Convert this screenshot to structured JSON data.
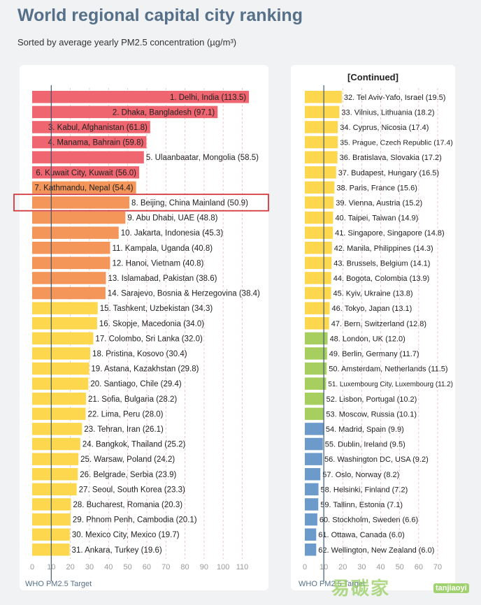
{
  "title": "World regional capital city ranking",
  "subtitle": "Sorted by average yearly PM2.5 concentration (µg/m³)",
  "continued_label": "[Continued]",
  "who_label": "WHO PM2.5 Target",
  "watermark": "易碳家",
  "watermark_site": "tanjiaoyi",
  "colors": {
    "red": "#ef6670",
    "orange": "#f4955a",
    "yellow": "#fdd84f",
    "green": "#a6cf5f",
    "blue": "#6b9acb",
    "who_line": "#3f5870",
    "grid": "#e9b9b9",
    "highlight_box": "#d2373c"
  },
  "chart_data": [
    {
      "type": "bar",
      "orientation": "horizontal",
      "reference_line": {
        "label": "WHO PM2.5 Target",
        "value": 10
      },
      "xlim": [
        0,
        115
      ],
      "ticks": [
        0,
        10,
        20,
        30,
        40,
        50,
        60,
        70,
        80,
        90,
        100,
        110
      ],
      "highlighted": "8. Beijing, China Mainland (50.9)",
      "bars": [
        {
          "label": "1. Delhi, India (113.5)",
          "value": 113.5,
          "color": "red"
        },
        {
          "label": "2. Dhaka, Bangladesh (97.1)",
          "value": 97.1,
          "color": "red"
        },
        {
          "label": "3. Kabul, Afghanistan (61.8)",
          "value": 61.8,
          "color": "red"
        },
        {
          "label": "4. Manama, Bahrain (59.8)",
          "value": 59.8,
          "color": "red"
        },
        {
          "label": "5. Ulaanbaatar, Mongolia (58.5)",
          "value": 58.5,
          "color": "red"
        },
        {
          "label": "6. Kuwait City, Kuwait (56.0)",
          "value": 56.0,
          "color": "red"
        },
        {
          "label": "7. Kathmandu, Nepal (54.4)",
          "value": 54.4,
          "color": "orange"
        },
        {
          "label": "8. Beijing, China Mainland (50.9)",
          "value": 50.9,
          "color": "orange"
        },
        {
          "label": "9. Abu Dhabi, UAE (48.8)",
          "value": 48.8,
          "color": "orange"
        },
        {
          "label": "10. Jakarta, Indonesia (45.3)",
          "value": 45.3,
          "color": "orange"
        },
        {
          "label": "11. Kampala, Uganda (40.8)",
          "value": 40.8,
          "color": "orange"
        },
        {
          "label": "12. Hanoi, Vietnam (40.8)",
          "value": 40.8,
          "color": "orange"
        },
        {
          "label": "13. Islamabad, Pakistan (38.6)",
          "value": 38.6,
          "color": "orange"
        },
        {
          "label": "14. Sarajevo, Bosnia & Herzegovina (38.4)",
          "value": 38.4,
          "color": "orange"
        },
        {
          "label": "15. Tashkent, Uzbekistan (34.3)",
          "value": 34.3,
          "color": "yellow"
        },
        {
          "label": "16. Skopje, Macedonia (34.0)",
          "value": 34.0,
          "color": "yellow"
        },
        {
          "label": "17. Colombo, Sri Lanka (32.0)",
          "value": 32.0,
          "color": "yellow"
        },
        {
          "label": "18. Pristina, Kosovo (30.4)",
          "value": 30.4,
          "color": "yellow"
        },
        {
          "label": "19. Astana, Kazakhstan (29.8)",
          "value": 29.8,
          "color": "yellow"
        },
        {
          "label": "20. Santiago, Chile (29.4)",
          "value": 29.4,
          "color": "yellow"
        },
        {
          "label": "21. Sofia, Bulgaria (28.2)",
          "value": 28.2,
          "color": "yellow"
        },
        {
          "label": "22. Lima, Peru (28.0)",
          "value": 28.0,
          "color": "yellow"
        },
        {
          "label": "23. Tehran, Iran (26.1)",
          "value": 26.1,
          "color": "yellow"
        },
        {
          "label": "24. Bangkok, Thailand (25.2)",
          "value": 25.2,
          "color": "yellow"
        },
        {
          "label": "25. Warsaw, Poland (24.2)",
          "value": 24.2,
          "color": "yellow"
        },
        {
          "label": "26. Belgrade, Serbia (23.9)",
          "value": 23.9,
          "color": "yellow"
        },
        {
          "label": "27. Seoul, South Korea (23.3)",
          "value": 23.3,
          "color": "yellow"
        },
        {
          "label": "28. Bucharest, Romania (20.3)",
          "value": 20.3,
          "color": "yellow"
        },
        {
          "label": "29. Phnom Penh, Cambodia (20.1)",
          "value": 20.1,
          "color": "yellow"
        },
        {
          "label": "30. Mexico City, Mexico (19.7)",
          "value": 19.7,
          "color": "yellow"
        },
        {
          "label": "31. Ankara, Turkey (19.6)",
          "value": 19.6,
          "color": "yellow"
        }
      ]
    },
    {
      "type": "bar",
      "orientation": "horizontal",
      "reference_line": {
        "label": "WHO PM2.5 Target",
        "value": 10
      },
      "xlim": [
        0,
        70
      ],
      "ticks": [
        0,
        10,
        20,
        30,
        40,
        50,
        60,
        70
      ],
      "bars": [
        {
          "label": "32. Tel Aviv-Yafo, Israel (19.5)",
          "value": 19.5,
          "color": "yellow"
        },
        {
          "label": "33. Vilnius, Lithuania (18.2)",
          "value": 18.2,
          "color": "yellow"
        },
        {
          "label": "34. Cyprus, Nicosia (17.4)",
          "value": 17.4,
          "color": "yellow"
        },
        {
          "label": "35. Prague, Czech Republic (17.4)",
          "value": 17.4,
          "color": "yellow"
        },
        {
          "label": "36. Bratislava, Slovakia (17.2)",
          "value": 17.2,
          "color": "yellow"
        },
        {
          "label": "37. Budapest, Hungary (16.5)",
          "value": 16.5,
          "color": "yellow"
        },
        {
          "label": "38. Paris, France (15.6)",
          "value": 15.6,
          "color": "yellow"
        },
        {
          "label": "39. Vienna, Austria (15.2)",
          "value": 15.2,
          "color": "yellow"
        },
        {
          "label": "40. Taipei, Taiwan (14.9)",
          "value": 14.9,
          "color": "yellow"
        },
        {
          "label": "41. Singapore, Singapore (14.8)",
          "value": 14.8,
          "color": "yellow"
        },
        {
          "label": "42. Manila, Philippines (14.3)",
          "value": 14.3,
          "color": "yellow"
        },
        {
          "label": "43. Brussels, Belgium (14.1)",
          "value": 14.1,
          "color": "yellow"
        },
        {
          "label": "44. Bogota, Colombia (13.9)",
          "value": 13.9,
          "color": "yellow"
        },
        {
          "label": "45. Kyiv, Ukraine (13.8)",
          "value": 13.8,
          "color": "yellow"
        },
        {
          "label": "46. Tokyo, Japan (13.1)",
          "value": 13.1,
          "color": "yellow"
        },
        {
          "label": "47. Bern, Switzerland (12.8)",
          "value": 12.8,
          "color": "yellow"
        },
        {
          "label": "48. London, UK (12.0)",
          "value": 12.0,
          "color": "green"
        },
        {
          "label": "49. Berlin, Germany (11.7)",
          "value": 11.7,
          "color": "green"
        },
        {
          "label": "50. Amsterdam, Netherlands (11.5)",
          "value": 11.5,
          "color": "green"
        },
        {
          "label": "51. Luxembourg City, Luxembourg (11.2)",
          "value": 11.2,
          "color": "green"
        },
        {
          "label": "52. Lisbon, Portugal (10.2)",
          "value": 10.2,
          "color": "green"
        },
        {
          "label": "53. Moscow, Russia (10.1)",
          "value": 10.1,
          "color": "green"
        },
        {
          "label": "54. Madrid, Spain (9.9)",
          "value": 9.9,
          "color": "blue"
        },
        {
          "label": "55. Dublin, Ireland (9.5)",
          "value": 9.5,
          "color": "blue"
        },
        {
          "label": "56. Washington DC, USA (9.2)",
          "value": 9.2,
          "color": "blue"
        },
        {
          "label": "57. Oslo, Norway (8.2)",
          "value": 8.2,
          "color": "blue"
        },
        {
          "label": "58. Helsinki, Finland (7.2)",
          "value": 7.2,
          "color": "blue"
        },
        {
          "label": "59. Tallinn, Estonia (7.1)",
          "value": 7.1,
          "color": "blue"
        },
        {
          "label": "60. Stockholm, Sweden (6.6)",
          "value": 6.6,
          "color": "blue"
        },
        {
          "label": "61. Ottawa, Canada (6.0)",
          "value": 6.0,
          "color": "blue"
        },
        {
          "label": "62. Wellington, New Zealand (6.0)",
          "value": 6.0,
          "color": "blue"
        }
      ]
    }
  ]
}
